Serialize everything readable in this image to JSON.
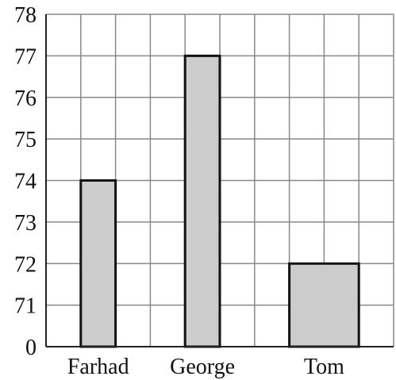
{
  "chart_data": {
    "type": "bar",
    "categories": [
      "Farhad",
      "George",
      "Tom"
    ],
    "values": [
      74,
      77,
      72
    ],
    "title": "",
    "xlabel": "",
    "ylabel": "",
    "y_tick_labels": [
      "0",
      "71",
      "72",
      "73",
      "74",
      "75",
      "76",
      "77",
      "78"
    ],
    "ylim": [
      70,
      78
    ],
    "y_axis_break": "0 shown at base, axis starts at 70",
    "grid": true,
    "bar_color": "#cccccc",
    "bar_edge_color": "#111111",
    "grid_color": "#888888"
  }
}
